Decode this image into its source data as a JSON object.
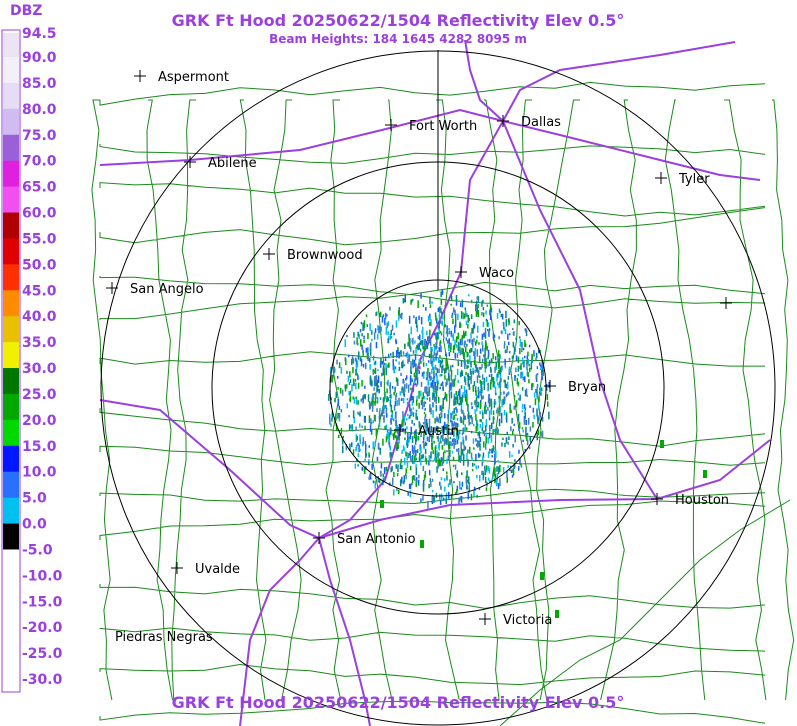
{
  "header": {
    "unit": "DBZ",
    "title": "GRK Ft Hood 20250622/1504 Reflectivity Elev 0.5°",
    "subtitle": "Beam Heights: 184 1645 4282 8095 m"
  },
  "legend": {
    "labels": [
      "94.5",
      "90.0",
      "85.0",
      "80.0",
      "75.0",
      "70.0",
      "65.0",
      "60.0",
      "55.0",
      "50.0",
      "45.0",
      "40.0",
      "35.0",
      "30.0",
      "25.0",
      "20.0",
      "15.0",
      "10.0",
      "5.0",
      "0.0",
      "-5.0",
      "-10.0",
      "-15.0",
      "-20.0",
      "-25.0",
      "-30.0"
    ]
  },
  "cities": [
    "Aspermont",
    "Abilene",
    "Fort Worth",
    "Dallas",
    "Tyler",
    "Brownwood",
    "San Angelo",
    "Waco",
    "Bryan",
    "Austin",
    "Houston",
    "San Antonio",
    "Uvalde",
    "Victoria",
    "Piedras Negras"
  ],
  "footer": {
    "title": "GRK Ft Hood 20250622/1504 Reflectivity Elev 0.5°"
  }
}
